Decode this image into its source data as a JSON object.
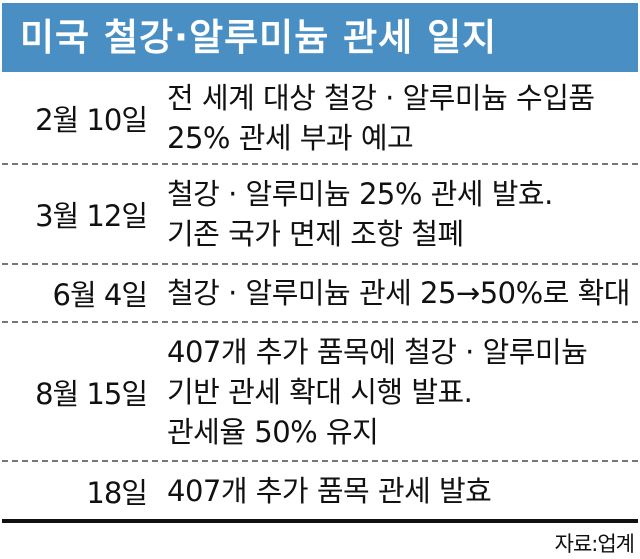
{
  "title": "미국 철강·알루미늄 관세 일지",
  "rows": [
    {
      "date": "2월 10일",
      "lines": [
        "전 세계 대상 철강 · 알루미늄 수입품",
        "25% 관세 부과 예고"
      ]
    },
    {
      "date": "3월 12일",
      "lines": [
        "철강 · 알루미늄 25% 관세 발효.",
        "기존 국가 면제 조항 철폐"
      ]
    },
    {
      "date": "6월 4일",
      "lines": [
        "철강 · 알루미늄 관세 25→50%로 확대"
      ]
    },
    {
      "date": "8월 15일",
      "lines": [
        "407개 추가 품목에 철강 · 알루미늄",
        "기반 관세 확대 시행 발표.",
        "관세율 50% 유지"
      ]
    },
    {
      "date": "18일",
      "lines": [
        "407개 추가 품목 관세 발효"
      ]
    }
  ],
  "source": "자료:업계",
  "colors": {
    "header_bg": "#4a8fc4",
    "header_text": "#ffffff"
  }
}
